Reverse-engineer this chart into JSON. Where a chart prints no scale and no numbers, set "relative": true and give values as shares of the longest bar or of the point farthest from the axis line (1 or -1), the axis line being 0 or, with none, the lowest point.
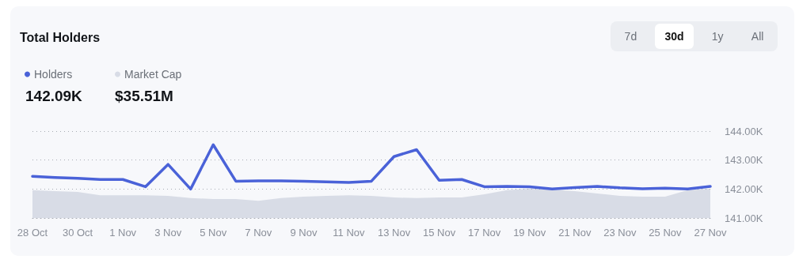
{
  "chart_data": [
    {
      "type": "line",
      "title": "Total Holders",
      "annotations": [
        "142.09K",
        "7d",
        "30d",
        "1y",
        "All"
      ],
      "categories": [
        "28 Oct",
        null,
        "30 Oct",
        null,
        "1 Nov",
        null,
        "3 Nov",
        null,
        "5 Nov",
        null,
        "7 Nov",
        null,
        "9 Nov",
        null,
        "11 Nov",
        null,
        "13 Nov",
        null,
        "15 Nov",
        null,
        "17 Nov",
        null,
        "19 Nov",
        null,
        "21 Nov",
        null,
        "23 Nov",
        null,
        "25 Nov",
        null,
        "27 Nov"
      ],
      "series": [
        {
          "name": "Holders",
          "color": "#4a62d8",
          "values": [
            142.44,
            142.4,
            142.37,
            142.33,
            142.33,
            142.08,
            142.85,
            142.0,
            143.53,
            142.27,
            142.28,
            142.28,
            142.27,
            142.25,
            142.23,
            142.27,
            143.12,
            143.36,
            142.3,
            142.33,
            142.08,
            142.09,
            142.08,
            142.0,
            142.05,
            142.09,
            142.04,
            142.01,
            142.03,
            142.0,
            142.09
          ]
        }
      ],
      "ylim": [
        141,
        144
      ],
      "yticks": [
        {
          "value": 141,
          "label": "141.00K"
        },
        {
          "value": 142,
          "label": "142.00K"
        },
        {
          "value": 143,
          "label": "143.00K"
        },
        {
          "value": 144,
          "label": "144.00K"
        }
      ],
      "grid": "y",
      "legend": "top left",
      "marker": "none"
    },
    {
      "type": "area",
      "annotations": [
        "$35.51M"
      ],
      "categories": [
        null,
        null,
        null,
        null,
        null,
        null,
        null,
        null,
        null,
        null,
        null,
        null,
        null,
        null,
        null,
        null,
        null,
        null,
        null,
        null,
        null,
        null,
        null,
        null,
        null,
        null,
        null,
        null,
        null,
        null,
        null
      ],
      "series": [
        {
          "name": "Market Cap",
          "color": "#d8dce6",
          "values": [
            0.95,
            0.92,
            0.89,
            0.78,
            0.78,
            0.78,
            0.76,
            0.68,
            0.65,
            0.65,
            0.59,
            0.68,
            0.73,
            0.76,
            0.78,
            0.76,
            0.7,
            0.68,
            0.7,
            0.7,
            0.81,
            0.95,
            1,
            0.97,
            0.92,
            0.84,
            0.76,
            0.73,
            0.73,
            0.95,
            1
          ]
        }
      ],
      "relative": true,
      "legend": "top left"
    }
  ]
}
